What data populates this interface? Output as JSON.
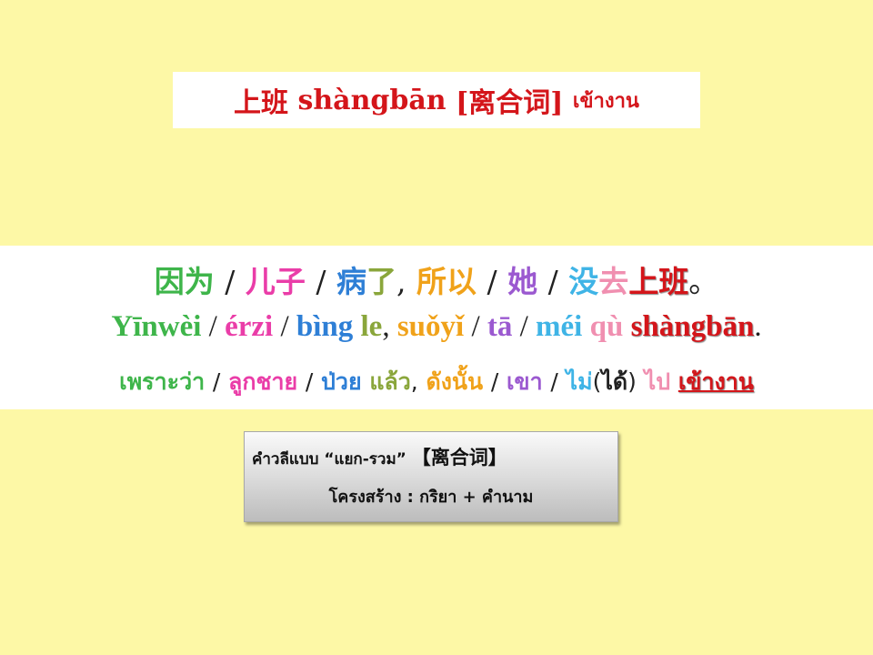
{
  "title": {
    "hanzi": "上班",
    "pinyin": "shàngbān",
    "tag": "[离合词]",
    "thai": "เข้างาน"
  },
  "sentence": {
    "hanzi": [
      {
        "text": "因为",
        "color": "#3eb54a"
      },
      {
        "text": "儿子",
        "color": "#ea3da8"
      },
      {
        "text": "病",
        "color": "#2e7fd6"
      },
      {
        "text": "了",
        "color": "#8aa63b"
      },
      {
        "text": "所以",
        "color": "#f0a21a"
      },
      {
        "text": "她",
        "color": "#9b59d0"
      },
      {
        "text": "没",
        "color": "#3fb4e6"
      },
      {
        "text": "去",
        "color": "#f08fb0"
      },
      {
        "text": "上班",
        "color": "#d4151a"
      }
    ],
    "pinyin": [
      {
        "text": "Yīnwèi",
        "color": "#3eb54a"
      },
      {
        "text": "érzi",
        "color": "#ea3da8"
      },
      {
        "text": "bìng",
        "color": "#2e7fd6"
      },
      {
        "text": "le",
        "color": "#8aa63b"
      },
      {
        "text": "suǒyǐ",
        "color": "#f0a21a"
      },
      {
        "text": "tā",
        "color": "#9b59d0"
      },
      {
        "text": "méi",
        "color": "#3fb4e6"
      },
      {
        "text": "qù",
        "color": "#f08fb0"
      },
      {
        "text": "shàngbān",
        "color": "#d4151a"
      }
    ],
    "thai": [
      {
        "text": "เพราะว่า",
        "color": "#3eb54a"
      },
      {
        "text": "ลูกชาย",
        "color": "#ea3da8"
      },
      {
        "text": "ป่วย",
        "color": "#2e7fd6"
      },
      {
        "text": "แล้ว",
        "color": "#8aa63b"
      },
      {
        "text": "ดังนั้น",
        "color": "#f0a21a"
      },
      {
        "text": "เขา",
        "color": "#9b59d0"
      },
      {
        "text": "ไม่",
        "color": "#3fb4e6"
      },
      {
        "text": "ได้",
        "color": "#222222"
      },
      {
        "text": "ไป",
        "color": "#f08fb0"
      },
      {
        "text": "เข้างาน",
        "color": "#d4151a"
      }
    ],
    "sep": "/",
    "comma": ",",
    "period_cn": "。",
    "period_en": ".",
    "paren_open": "(",
    "paren_close": ")"
  },
  "note": {
    "line1_prefix": "คำวลีแบบ",
    "line1_quote": "“แยก-รวม”",
    "line1_tag": "【离合词】",
    "line2": "โครงสร้าง : กริยา + คำนาม"
  }
}
